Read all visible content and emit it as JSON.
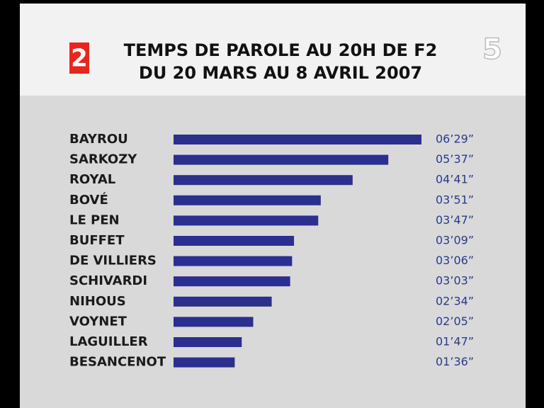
{
  "chart_data": {
    "type": "bar",
    "orientation": "horizontal",
    "title": "TEMPS DE PAROLE AU 20H DE F2",
    "subtitle": "DU 20 MARS AU 8 AVRIL 2007",
    "channel_logo": "2",
    "watermark": "5",
    "categories": [
      "BAYROU",
      "SARKOZY",
      "ROYAL",
      "BOVÉ",
      "LE PEN",
      "BUFFET",
      "DE VILLIERS",
      "SCHIVARDI",
      "NIHOUS",
      "VOYNET",
      "LAGUILLER",
      "BESANCENOT"
    ],
    "values": [
      389,
      337,
      281,
      231,
      227,
      189,
      186,
      183,
      154,
      125,
      107,
      96
    ],
    "value_labels": [
      "06’29”",
      "05’37”",
      "04’41”",
      "03’51”",
      "03’47”",
      "03’09”",
      "03’06”",
      "03’03”",
      "02’34”",
      "02’05”",
      "01’47”",
      "01’36”"
    ],
    "color": "#2b2f8e"
  }
}
